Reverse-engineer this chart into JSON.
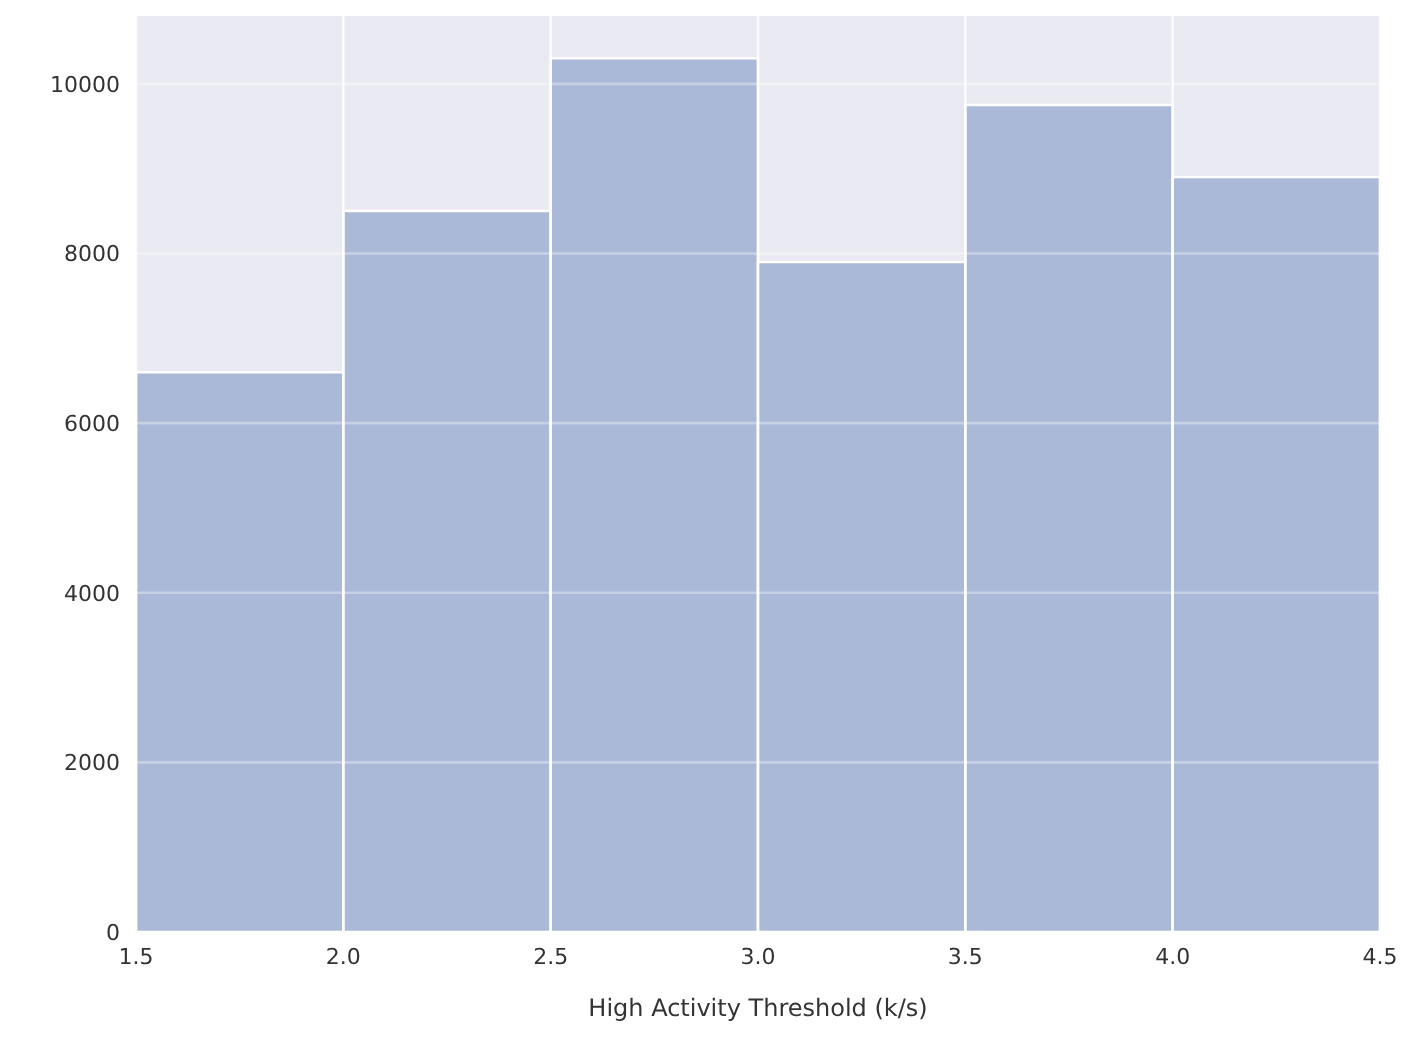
{
  "chart_data": {
    "type": "histogram",
    "xlabel": "High Activity Threshold (k/s)",
    "bins": [
      1.5,
      2.0,
      2.5,
      3.0,
      3.5,
      4.0,
      4.5
    ],
    "values": [
      6600,
      8500,
      10300,
      7900,
      9750,
      8900
    ],
    "color": "#aab9d7",
    "xlim": [
      1.5,
      4.5
    ],
    "xticks": [
      {
        "value": 1.5,
        "label": "1.5"
      },
      {
        "value": 2.0,
        "label": "2.0"
      },
      {
        "value": 2.5,
        "label": "2.5"
      },
      {
        "value": 3.0,
        "label": "3.0"
      },
      {
        "value": 3.5,
        "label": "3.5"
      },
      {
        "value": 4.0,
        "label": "4.0"
      },
      {
        "value": 4.5,
        "label": "4.5"
      }
    ],
    "ylim": [
      0,
      10800
    ],
    "yticks": [
      0,
      2000,
      4000,
      6000,
      8000,
      10000
    ],
    "grid": true
  }
}
